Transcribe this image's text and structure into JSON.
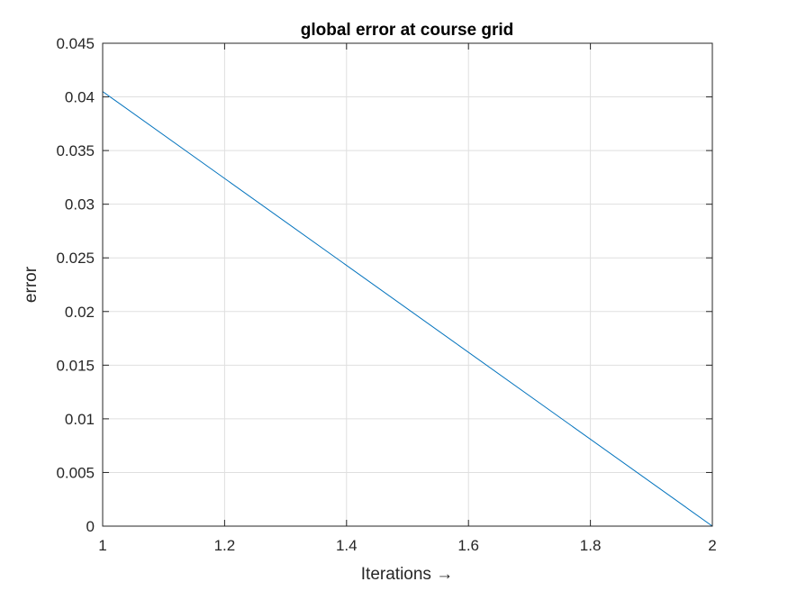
{
  "chart_data": {
    "type": "line",
    "title": "global error at course grid",
    "xlabel": "Iterations →",
    "ylabel": "error",
    "xlim": [
      1,
      2
    ],
    "ylim": [
      0,
      0.045
    ],
    "xticks": [
      1,
      1.2,
      1.4,
      1.6,
      1.8,
      2
    ],
    "xtick_labels": [
      "1",
      "1.2",
      "1.4",
      "1.6",
      "1.8",
      "2"
    ],
    "yticks": [
      0,
      0.005,
      0.01,
      0.015,
      0.02,
      0.025,
      0.03,
      0.035,
      0.04,
      0.045
    ],
    "ytick_labels": [
      "0",
      "0.005",
      "0.01",
      "0.015",
      "0.02",
      "0.025",
      "0.03",
      "0.035",
      "0.04",
      "0.045"
    ],
    "grid": true,
    "series": [
      {
        "color": "#0072BD",
        "x": [
          1,
          2
        ],
        "y": [
          0.0405,
          0
        ]
      }
    ]
  }
}
